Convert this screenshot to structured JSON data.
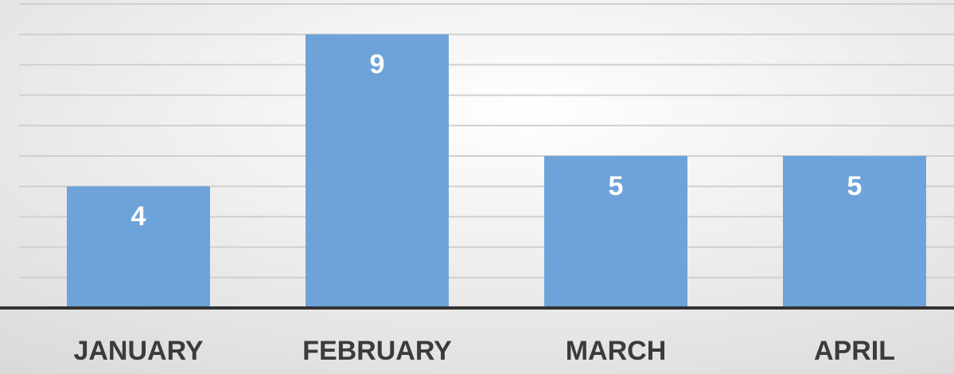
{
  "chart_data": {
    "type": "bar",
    "categories": [
      "JANUARY",
      "FEBRUARY",
      "MARCH",
      "APRIL"
    ],
    "values": [
      4,
      9,
      5,
      5
    ],
    "color": "#6ea3da",
    "ylim": [
      0,
      10
    ],
    "yticks": [
      0,
      1,
      2,
      3,
      4,
      5,
      6,
      7,
      8,
      9,
      10
    ],
    "grid": true
  }
}
